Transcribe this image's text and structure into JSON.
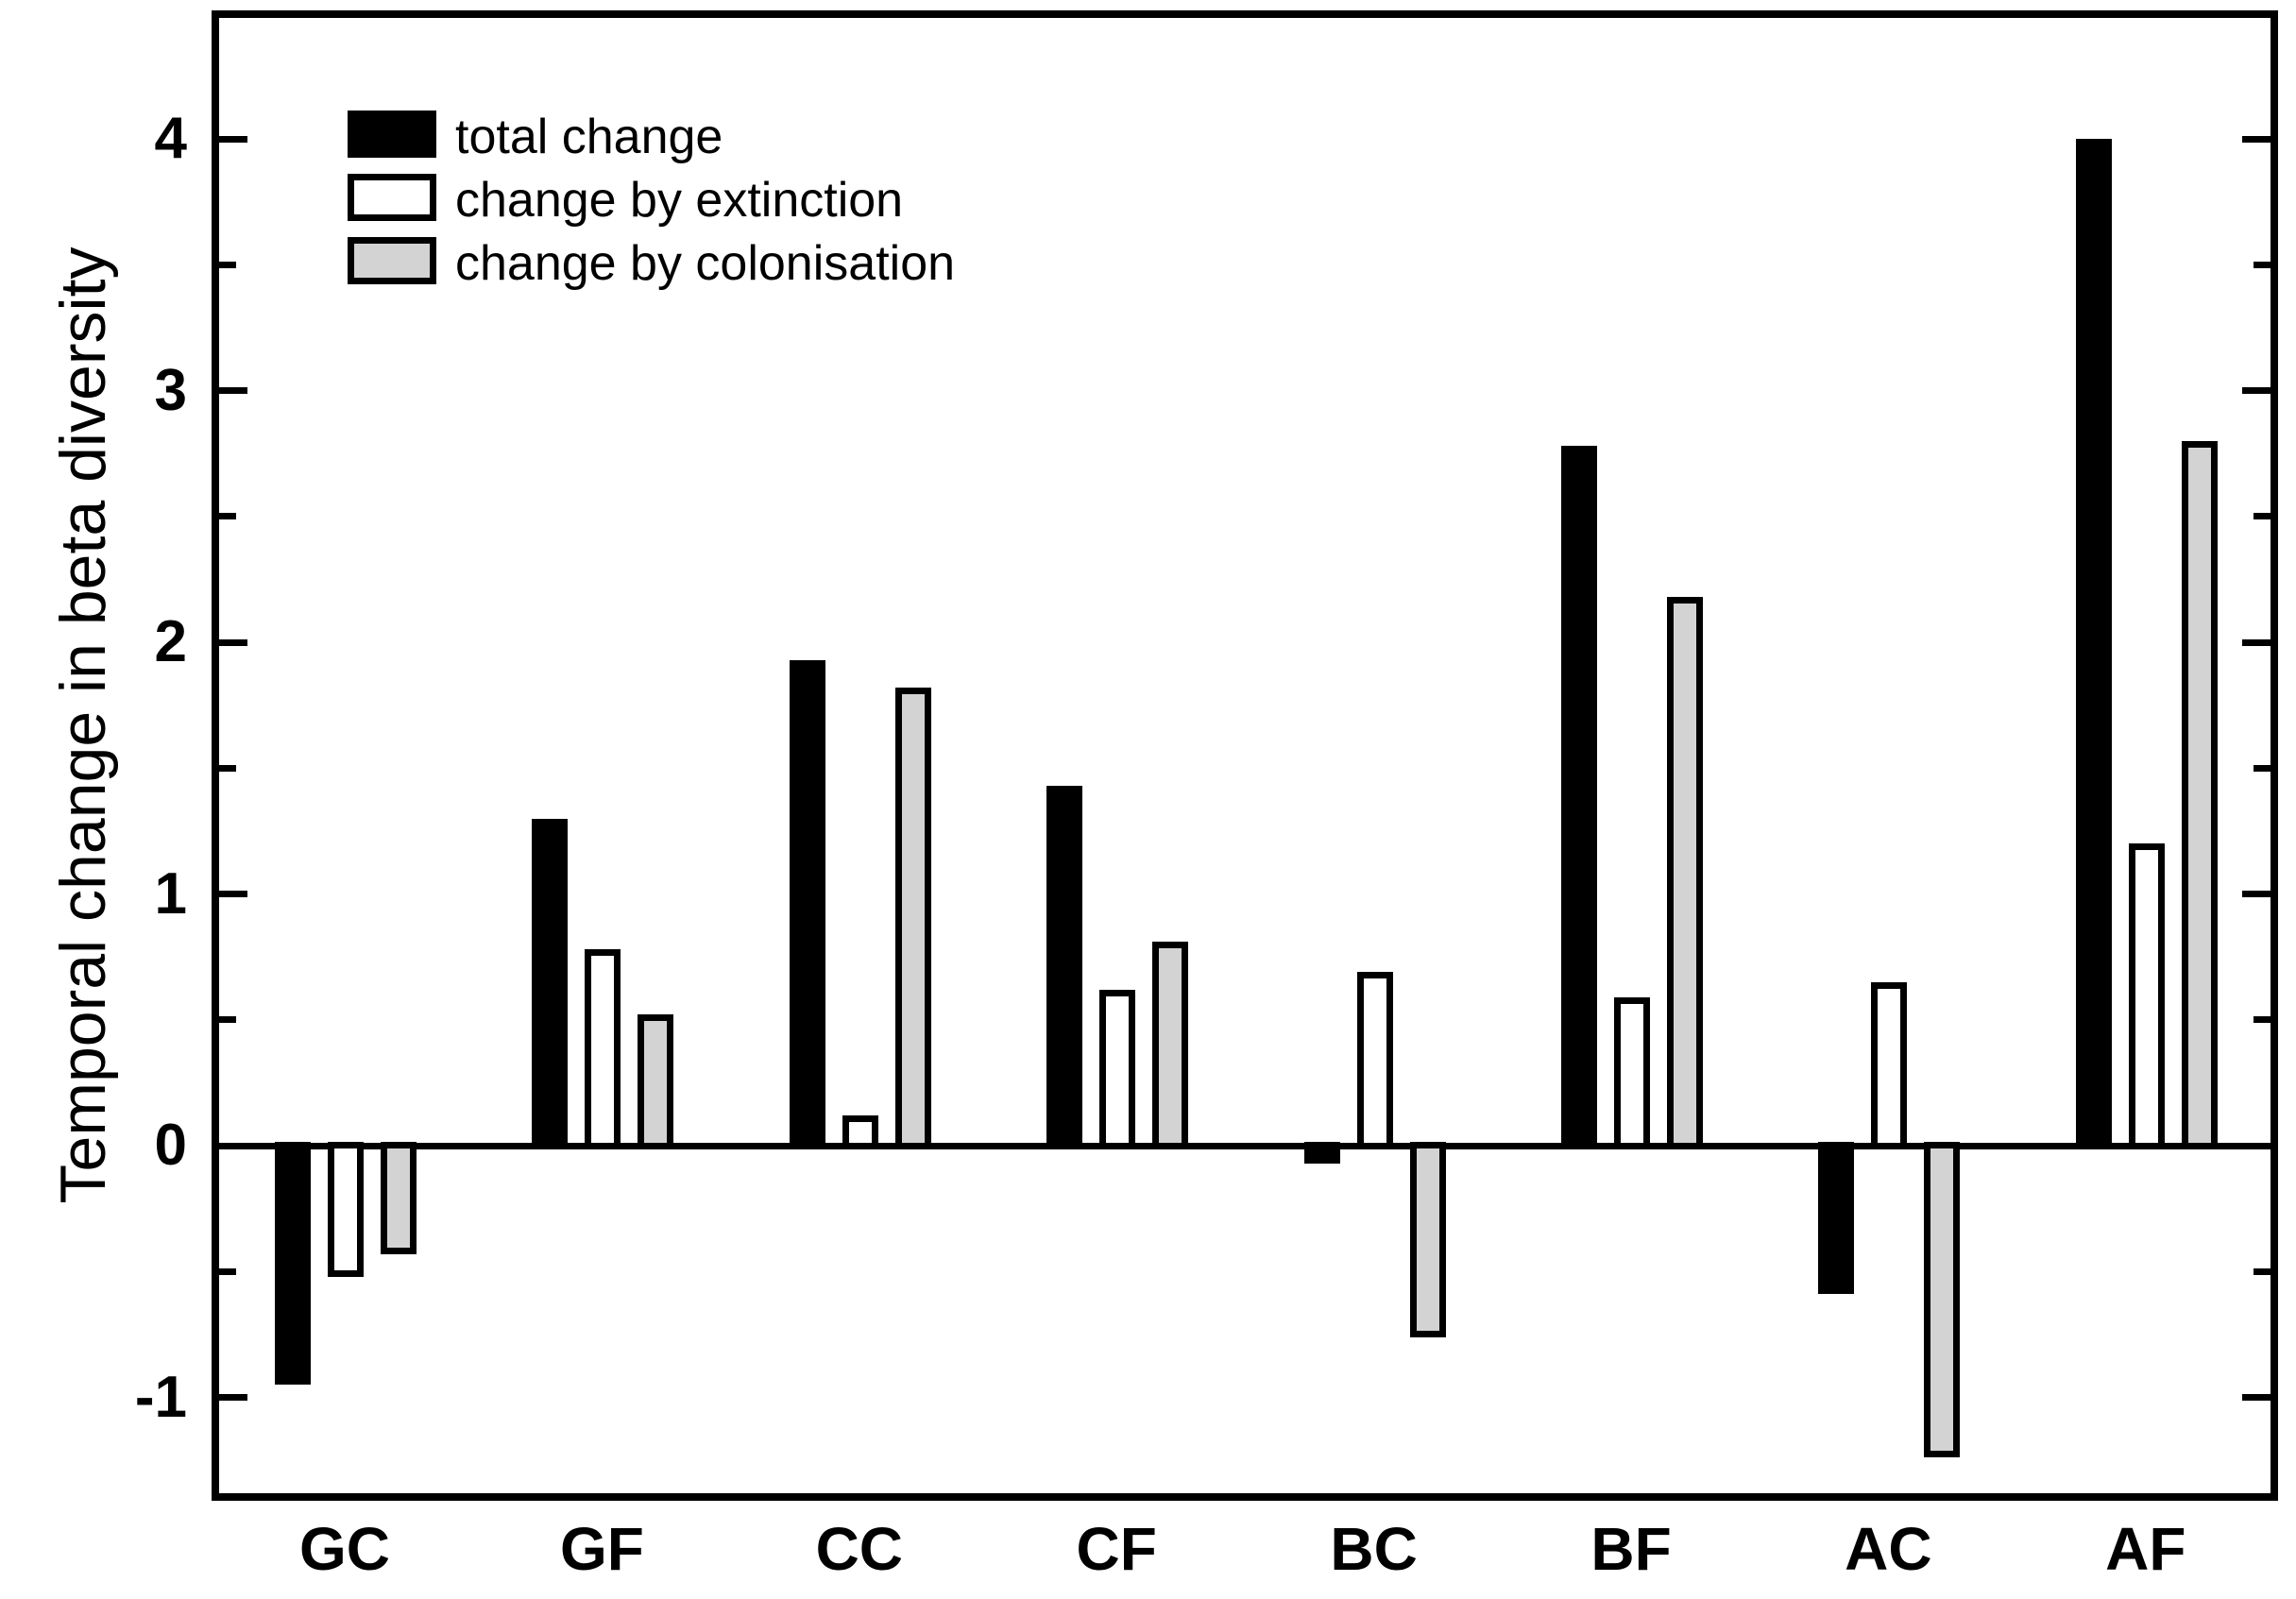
{
  "figure": {
    "background": "#ffffff",
    "frame_color": "#000000",
    "text_color": "#000000"
  },
  "chart_data": {
    "type": "bar",
    "title": "",
    "xlabel": "",
    "ylabel": "Temporal change in beta diversity",
    "categories": [
      "GC",
      "GF",
      "CC",
      "CF",
      "BC",
      "BF",
      "AC",
      "AF"
    ],
    "series": [
      {
        "name": "total change",
        "color": "#000000",
        "border": "#000000",
        "values": [
          -0.95,
          1.3,
          1.93,
          1.43,
          -0.07,
          2.78,
          -0.59,
          4.0
        ]
      },
      {
        "name": "change by extinction",
        "color": "#ffffff",
        "border": "#000000",
        "values": [
          -0.52,
          0.78,
          0.12,
          0.62,
          0.69,
          0.59,
          0.65,
          1.2
        ]
      },
      {
        "name": "change by colonisation",
        "color": "#d3d3d3",
        "border": "#000000",
        "values": [
          -0.43,
          0.52,
          1.82,
          0.81,
          -0.76,
          2.18,
          -1.24,
          2.8
        ]
      }
    ],
    "ylim": [
      -1.4,
      4.5
    ],
    "y_major_ticks": [
      -1,
      0,
      1,
      2,
      3,
      4
    ],
    "y_minor_ticks": [
      -0.5,
      0.5,
      1.5,
      2.5,
      3.5
    ],
    "grid": false,
    "zero_line": true,
    "legend_position": "upper-left-inside"
  }
}
